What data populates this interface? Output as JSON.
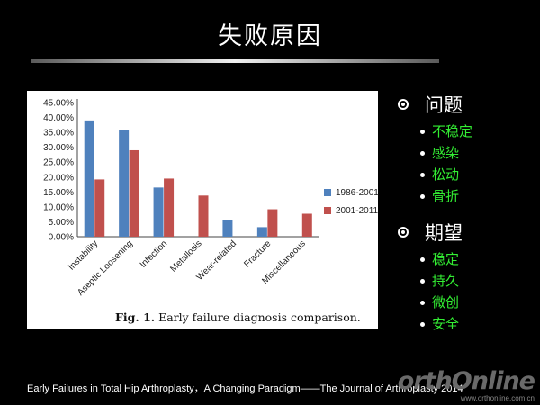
{
  "slide": {
    "title": "失败原因",
    "footer": "Early Failures in Total Hip Arthroplasty，A Changing Paradigm——The Journal of Arthroplasty 2014"
  },
  "figure": {
    "caption_label": "Fig. 1.",
    "caption_text": " Early failure diagnosis comparison."
  },
  "chart_data": {
    "type": "bar",
    "categories": [
      "Instability",
      "Aseptic Loosening",
      "Infection",
      "Metallosis",
      "Wear-related",
      "Fracture",
      "Miscellaneous"
    ],
    "series": [
      {
        "name": "1986-2001",
        "color": "#4f81bd",
        "values": [
          39.0,
          35.7,
          16.5,
          0,
          5.5,
          3.2,
          0
        ]
      },
      {
        "name": "2001-2011",
        "color": "#c0504d",
        "values": [
          19.2,
          29.0,
          19.5,
          13.8,
          0,
          9.2,
          7.7
        ]
      }
    ],
    "yticks": [
      "0.00%",
      "5.00%",
      "10.00%",
      "15.00%",
      "20.00%",
      "25.00%",
      "30.00%",
      "35.00%",
      "40.00%",
      "45.00%"
    ],
    "ylim": [
      0,
      45
    ],
    "ylabel": "",
    "xlabel": "",
    "grid": false,
    "legend_position": "right"
  },
  "bullets": [
    {
      "heading": "问题",
      "items": [
        "不稳定",
        "感染",
        "松动",
        "骨折"
      ]
    },
    {
      "heading": "期望",
      "items": [
        "稳定",
        "持久",
        "微创",
        "安全"
      ]
    }
  ],
  "watermark": {
    "logo": "orthOnline",
    "url": "www.orthonline.com.cn"
  }
}
